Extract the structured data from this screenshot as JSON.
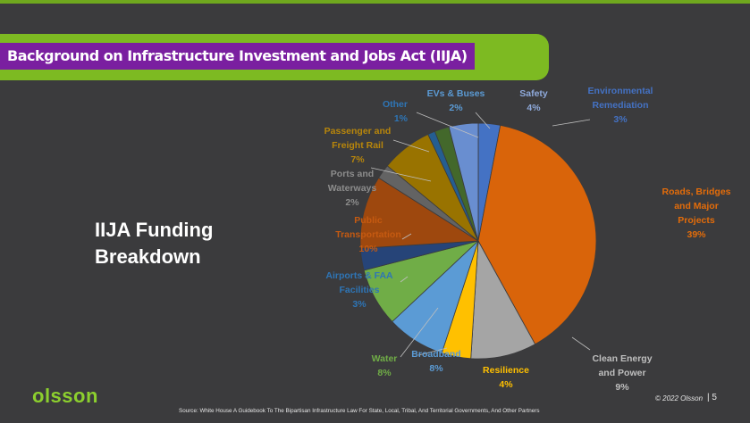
{
  "slide": {
    "title": "Background on Infrastructure Investment and Jobs Act (IIJA)",
    "side_heading_line1": "IIJA Funding",
    "side_heading_line2": "Breakdown",
    "logo": "olsson",
    "source": "Source: White House A Guidebook To The  Bipartisan Infrastructure Law For State, Local, Tribal, And  Territorial Governments, And Other Partners",
    "copyright": "© 2022 Olsson",
    "page_number": "| 5",
    "colors": {
      "background": "#3b3b3d",
      "title_bar": "#7dba22",
      "title_highlight": "#7a1fa0",
      "logo": "#8ccf2e"
    }
  },
  "chart_data": {
    "type": "pie",
    "start_angle_deg": 0,
    "direction": "clockwise",
    "series": [
      {
        "name": "Environmental Remediation",
        "value": 3,
        "label_lines": [
          "Environmental",
          "Remediation",
          "3%"
        ],
        "color": "#4472c4",
        "label_color": "#4472c4"
      },
      {
        "name": "Roads, Bridges and Major Projects",
        "value": 39,
        "label_lines": [
          "Roads, Bridges",
          "and Major",
          "Projects",
          "39%"
        ],
        "color": "#d9640a",
        "label_color": "#e36c0a"
      },
      {
        "name": "Clean Energy and Power",
        "value": 9,
        "label_lines": [
          "Clean Energy",
          "and Power",
          "9%"
        ],
        "color": "#a5a5a5",
        "label_color": "#bfbfbf"
      },
      {
        "name": "Resilience",
        "value": 4,
        "label_lines": [
          "Resilience",
          "4%"
        ],
        "color": "#ffc000",
        "label_color": "#ffc000"
      },
      {
        "name": "Broadband",
        "value": 8,
        "label_lines": [
          "Broadband",
          "8%"
        ],
        "color": "#5b9bd5",
        "label_color": "#5b9bd5"
      },
      {
        "name": "Water",
        "value": 8,
        "label_lines": [
          "Water",
          "8%"
        ],
        "color": "#70ad47",
        "label_color": "#70ad47"
      },
      {
        "name": "Airports & FAA Facilities",
        "value": 3,
        "label_lines": [
          "Airports & FAA",
          "Facilities",
          "3%"
        ],
        "color": "#264478",
        "label_color": "#2e75b6"
      },
      {
        "name": "Public Transportation",
        "value": 10,
        "label_lines": [
          "Public",
          "Transportation",
          "10%"
        ],
        "color": "#9e480e",
        "label_color": "#c55a11"
      },
      {
        "name": "Ports and Waterways",
        "value": 2,
        "label_lines": [
          "Ports and",
          "Waterways",
          "2%"
        ],
        "color": "#636363",
        "label_color": "#8c8c8c"
      },
      {
        "name": "Passenger and Freight Rail",
        "value": 7,
        "label_lines": [
          "Passenger and",
          "Freight Rail",
          "7%"
        ],
        "color": "#997300",
        "label_color": "#b8860b"
      },
      {
        "name": "Other",
        "value": 1,
        "label_lines": [
          "Other",
          "1%"
        ],
        "color": "#255e91",
        "label_color": "#2e75b6"
      },
      {
        "name": "EVs & Buses",
        "value": 2,
        "label_lines": [
          "EVs & Buses",
          "2%"
        ],
        "color": "#43682b",
        "label_color": "#5b9bd5"
      },
      {
        "name": "Safety",
        "value": 4,
        "label_lines": [
          "Safety",
          "4%"
        ],
        "color": "#698ed0",
        "label_color": "#8faadc"
      }
    ]
  }
}
